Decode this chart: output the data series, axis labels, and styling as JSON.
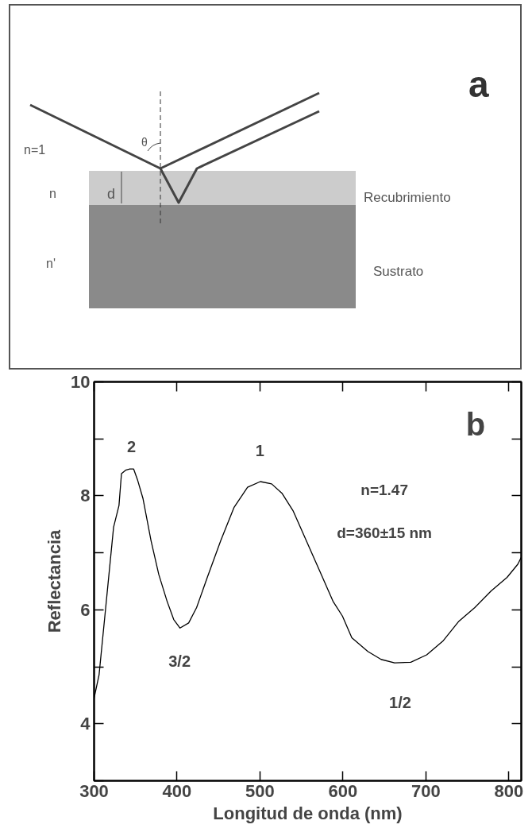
{
  "chart_data": [
    {
      "type": "other",
      "annotations": [
        "a",
        "n=1",
        "θ",
        "n",
        "d",
        "Recubrimiento",
        "n'",
        "Sustrato"
      ]
    },
    {
      "type": "line",
      "xlabel": "Longitud de onda (nm)",
      "ylabel": "Reflectancia",
      "x": [
        300,
        306,
        314,
        323.5,
        330,
        333,
        338,
        343,
        347.7,
        352.6,
        359,
        368.7,
        378,
        388,
        396,
        403.6,
        414,
        423.6,
        436.5,
        452.6,
        468.8,
        485,
        500.4,
        514,
        526.8,
        539.8,
        555.9,
        572,
        588,
        599.4,
        610.7,
        630,
        646,
        662.3,
        681.7,
        701,
        720.4,
        739.8,
        759,
        778.5,
        797.9,
        810.8,
        815
      ],
      "series": [
        {
          "color": "#000000",
          "values": [
            4.45,
            4.86,
            6.04,
            7.45,
            7.83,
            8.39,
            8.45,
            8.47,
            8.47,
            8.27,
            7.95,
            7.21,
            6.62,
            6.15,
            5.83,
            5.68,
            5.77,
            6.04,
            6.57,
            7.21,
            7.8,
            8.15,
            8.25,
            8.21,
            8.04,
            7.74,
            7.21,
            6.68,
            6.15,
            5.89,
            5.51,
            5.27,
            5.13,
            5.07,
            5.08,
            5.21,
            5.45,
            5.8,
            6.04,
            6.33,
            6.57,
            6.8,
            6.92
          ]
        }
      ],
      "xlim": [
        300,
        815
      ],
      "xticks": [
        300,
        400,
        500,
        600,
        700,
        800
      ],
      "ylim": [
        3,
        10
      ],
      "yticks": [
        {
          "value": 3,
          "label": null
        },
        4,
        {
          "value": 5,
          "label": null
        },
        6,
        {
          "value": 7,
          "label": null
        },
        8,
        {
          "value": 9,
          "label": null
        },
        10
      ],
      "grid": false,
      "marker": "none",
      "line_style": "solid",
      "annotations": [
        "2",
        "1",
        "3/2",
        "1/2",
        "b",
        "n=1.47",
        "d=360±15 nm"
      ]
    }
  ]
}
